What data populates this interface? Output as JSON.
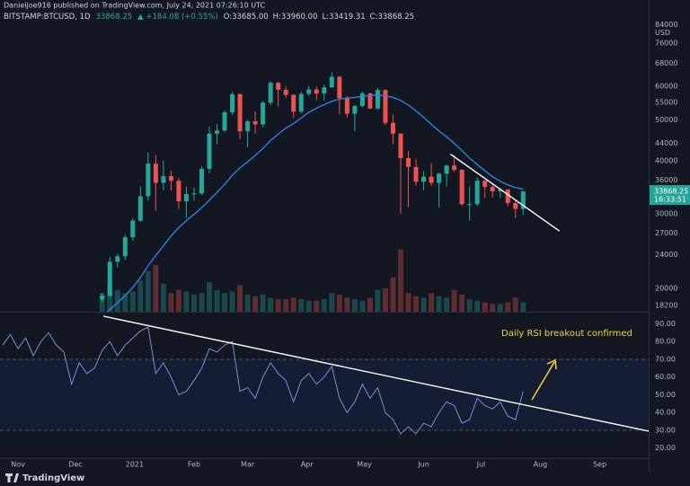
{
  "header": {
    "author_line": "Danieljoe916 published on TradingView.com, July 24, 2021 07:26:10 UTC",
    "symbol": "BITSTAMP:BTCUSD, 1D",
    "last": "33868.25",
    "change": "▲ +184.08 (+0.55%)",
    "ohlc": [
      "O:33685.00",
      "H:33960.00",
      "L:33419.31",
      "C:33868.25"
    ]
  },
  "footer": {
    "brand": "TradingView",
    "countdown": "16:33:51"
  },
  "chart_data": [
    {
      "type": "candlestick",
      "log_scale": true,
      "unit": "USD",
      "up_color": "#26a69a",
      "down_color": "#ef5350",
      "x": [
        44,
        48,
        52,
        56,
        60,
        64,
        68,
        72,
        76,
        80,
        84,
        88,
        92,
        96,
        100,
        104,
        108,
        112,
        116,
        120,
        124,
        128,
        132,
        136,
        140,
        144,
        148,
        152,
        156,
        160,
        164,
        168,
        172,
        176,
        180,
        184,
        188,
        192,
        196,
        200,
        204,
        208,
        212,
        216,
        220,
        224,
        228,
        232,
        236,
        240,
        244,
        248,
        252,
        256,
        260,
        264
      ],
      "open": [
        18800,
        19200,
        23100,
        23800,
        26400,
        28900,
        33000,
        39400,
        35500,
        36800,
        35900,
        32100,
        33400,
        33500,
        38300,
        46400,
        47200,
        52100,
        57500,
        47000,
        49600,
        48800,
        54900,
        61200,
        58900,
        57300,
        52300,
        57600,
        59000,
        57700,
        59700,
        63200,
        56200,
        51700,
        53900,
        57700,
        53200,
        58800,
        49200,
        46400,
        40600,
        38700,
        35700,
        36700,
        35500,
        37300,
        39000,
        38100,
        31600,
        31600,
        35900,
        34700,
        33900,
        34200,
        31800,
        30800
      ],
      "high": [
        19500,
        23700,
        24100,
        26800,
        29300,
        34800,
        41900,
        41300,
        40100,
        37900,
        36500,
        34800,
        34600,
        38900,
        48200,
        48900,
        52600,
        58300,
        57800,
        50000,
        52400,
        55400,
        61700,
        61500,
        60000,
        57500,
        58300,
        60100,
        60000,
        60600,
        64800,
        63500,
        57000,
        54300,
        58400,
        58000,
        59500,
        59000,
        51500,
        46500,
        42200,
        40400,
        37800,
        39500,
        37500,
        39200,
        41300,
        38200,
        34800,
        36600,
        36000,
        35100,
        34600,
        34300,
        32400,
        34000
      ],
      "low": [
        18500,
        19000,
        22400,
        23300,
        25900,
        28700,
        32200,
        30500,
        34100,
        34000,
        30800,
        29300,
        32200,
        33200,
        37400,
        43800,
        46800,
        51300,
        45000,
        43100,
        46400,
        48000,
        54200,
        53700,
        56300,
        50500,
        51800,
        56900,
        55700,
        55500,
        59500,
        51500,
        50600,
        47000,
        53500,
        53000,
        52800,
        48600,
        43800,
        30000,
        31100,
        34900,
        34100,
        34900,
        31000,
        34800,
        37700,
        31300,
        28900,
        31300,
        32700,
        32800,
        32700,
        31200,
        29300,
        29800
      ],
      "close": [
        19200,
        23100,
        23800,
        26400,
        28900,
        33000,
        39400,
        35500,
        36800,
        35900,
        32100,
        33400,
        33500,
        38300,
        46400,
        47200,
        52100,
        57500,
        47000,
        49600,
        48800,
        54900,
        61200,
        58900,
        57300,
        52300,
        57600,
        59000,
        57700,
        59700,
        63200,
        56200,
        51700,
        53900,
        57700,
        53200,
        58800,
        49200,
        46400,
        40600,
        38700,
        35700,
        36700,
        35500,
        37300,
        39000,
        38100,
        31600,
        31600,
        35900,
        34700,
        33900,
        34200,
        31800,
        30800,
        33868.25
      ],
      "volume": [
        12000,
        18000,
        14000,
        12000,
        13000,
        20000,
        26000,
        30000,
        18000,
        12000,
        14000,
        13000,
        11000,
        12000,
        19000,
        14000,
        12000,
        13000,
        17000,
        11000,
        10000,
        11000,
        9000,
        8000,
        8000,
        9000,
        8000,
        7000,
        7000,
        8000,
        12000,
        11000,
        9000,
        8000,
        7000,
        9000,
        14000,
        15000,
        22000,
        40000,
        12000,
        10000,
        9000,
        12000,
        10000,
        9000,
        14000,
        11000,
        8000,
        7000,
        6000,
        5000,
        5000,
        6000,
        9000,
        6000
      ],
      "vlim": [
        0,
        200000
      ],
      "moving_average": {
        "color": "#2f7de1",
        "values": [
          17200,
          17800,
          18500,
          19200,
          20100,
          21200,
          22600,
          23900,
          25200,
          26600,
          27800,
          28900,
          29900,
          31000,
          32300,
          33700,
          35200,
          37000,
          38500,
          39800,
          41200,
          42800,
          44700,
          46300,
          47800,
          49000,
          50500,
          52100,
          53300,
          54300,
          55300,
          56000,
          56300,
          56500,
          56800,
          57100,
          57300,
          57000,
          56500,
          55600,
          54200,
          52500,
          50700,
          48800,
          47100,
          45600,
          44000,
          42300,
          40600,
          39200,
          37900,
          36700,
          35800,
          35100,
          34600,
          34300
        ]
      },
      "trendline": {
        "color": "#ffffff",
        "x": [
          226,
          283
        ],
        "values": [
          41500,
          27300
        ]
      },
      "xlim": [
        -9.4,
        329.6
      ],
      "ylim": [
        17600,
        96000
      ],
      "yticks": [
        18200,
        20000,
        24000,
        27000,
        30000,
        36000,
        40000,
        44000,
        50000,
        55000,
        60000,
        68000,
        76000,
        84000
      ]
    },
    {
      "type": "line",
      "color": "#7b8fd0",
      "x": [
        -8,
        -4,
        0,
        4,
        8,
        12,
        16,
        20,
        24,
        28,
        32,
        36,
        40,
        44,
        48,
        52,
        56,
        60,
        64,
        68,
        72,
        76,
        80,
        84,
        88,
        92,
        96,
        100,
        104,
        108,
        112,
        116,
        120,
        124,
        128,
        132,
        136,
        140,
        144,
        148,
        152,
        156,
        160,
        164,
        168,
        172,
        176,
        180,
        184,
        188,
        192,
        196,
        200,
        204,
        208,
        212,
        216,
        220,
        224,
        228,
        232,
        236,
        240,
        244,
        248,
        252,
        256,
        260,
        264
      ],
      "values": [
        78,
        84,
        76,
        82,
        72,
        80,
        85,
        78,
        74,
        56,
        68,
        62,
        65,
        75,
        80,
        72,
        78,
        82,
        86,
        88,
        62,
        68,
        60,
        50,
        52,
        58,
        65,
        76,
        74,
        78,
        80,
        52,
        54,
        48,
        60,
        68,
        62,
        58,
        46,
        58,
        62,
        56,
        60,
        66,
        48,
        40,
        46,
        56,
        48,
        54,
        40,
        36,
        28,
        32,
        28,
        34,
        32,
        40,
        46,
        44,
        34,
        36,
        48,
        44,
        42,
        46,
        38,
        36,
        52
      ],
      "band": [
        30,
        70
      ],
      "trendline": {
        "color": "#ffffff",
        "x": [
          44.6,
          329.6
        ],
        "values": [
          94.3,
          29.5
        ]
      },
      "annotation": "Daily RSI breakout confirmed",
      "xlim": [
        -9.4,
        329.6
      ],
      "ylim": [
        14.3,
        96.3
      ],
      "yticks": [
        {
          "value": 20,
          "label": "20.00"
        },
        {
          "value": 30,
          "label": "30.00"
        },
        {
          "value": 40,
          "label": "40.00"
        },
        {
          "value": 50,
          "label": "50.00"
        },
        {
          "value": 60,
          "label": "60.00"
        },
        {
          "value": 70,
          "label": "70.00"
        },
        {
          "value": 80,
          "label": "80.00"
        },
        {
          "value": 90,
          "label": "90.00"
        }
      ],
      "xticks": [
        {
          "value": 0,
          "label": "Nov"
        },
        {
          "value": 30,
          "label": "Dec"
        },
        {
          "value": 61,
          "label": "2021"
        },
        {
          "value": 92,
          "label": "Feb"
        },
        {
          "value": 120,
          "label": "Mar"
        },
        {
          "value": 151,
          "label": "Apr"
        },
        {
          "value": 181,
          "label": "May"
        },
        {
          "value": 212,
          "label": "Jun"
        },
        {
          "value": 242,
          "label": "Jul"
        },
        {
          "value": 273,
          "label": "Aug"
        },
        {
          "value": 304,
          "label": "Sep"
        }
      ]
    }
  ]
}
